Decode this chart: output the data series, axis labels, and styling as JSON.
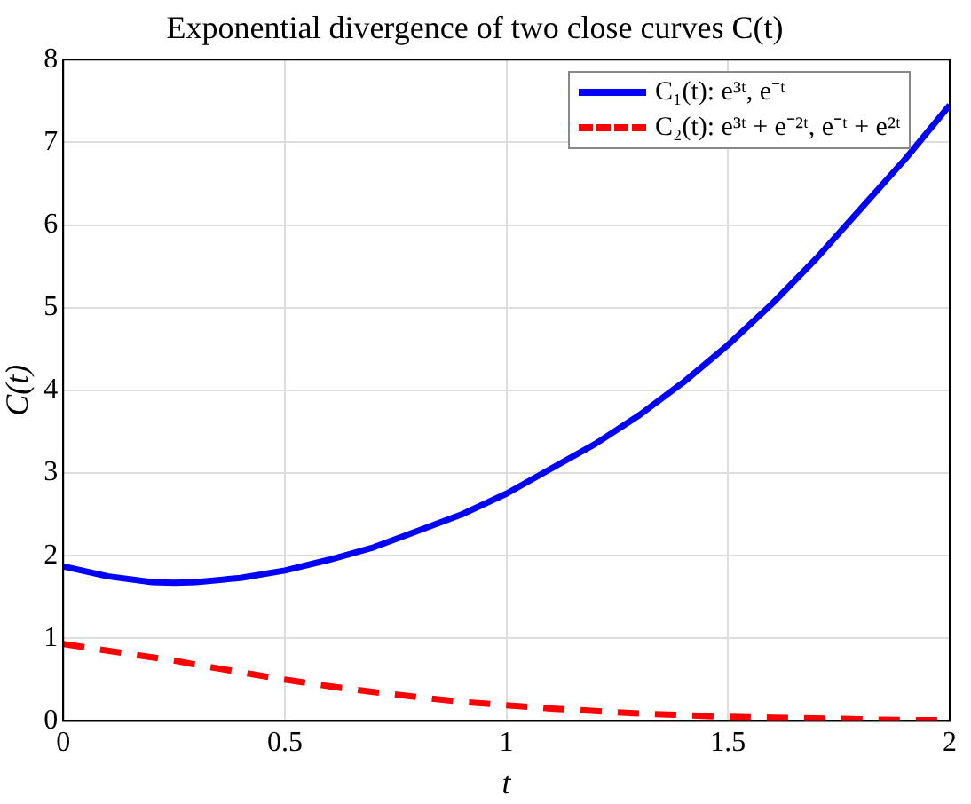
{
  "chart_data": {
    "type": "line",
    "title": "Exponential divergence of two close curves C(t)",
    "xlabel": "t",
    "ylabel": "C(t)",
    "x": [
      0,
      0.1,
      0.2,
      0.25,
      0.3,
      0.4,
      0.5,
      0.6,
      0.7,
      0.8,
      0.9,
      1.0,
      1.1,
      1.2,
      1.3,
      1.4,
      1.5,
      1.6,
      1.7,
      1.8,
      1.9,
      2.0
    ],
    "series": [
      {
        "name": "C₁(t): e³ᵗ, e⁻ᵗ",
        "color": "#0000ff",
        "line_style": "solid",
        "values": [
          1.87,
          1.75,
          1.68,
          1.67,
          1.68,
          1.73,
          1.82,
          1.95,
          2.1,
          2.3,
          2.5,
          2.75,
          3.05,
          3.35,
          3.7,
          4.1,
          4.55,
          5.05,
          5.6,
          6.2,
          6.8,
          7.45
        ]
      },
      {
        "name": "C₂(t): e³ᵗ + e⁻²ᵗ, e⁻ᵗ + e²ᵗ",
        "color": "#ff0000",
        "line_style": "dashed",
        "values": [
          0.93,
          0.85,
          0.77,
          0.73,
          0.68,
          0.59,
          0.5,
          0.42,
          0.35,
          0.29,
          0.23,
          0.19,
          0.15,
          0.12,
          0.09,
          0.07,
          0.05,
          0.04,
          0.03,
          0.02,
          0.01,
          0.01
        ]
      }
    ],
    "xlim": [
      0,
      2
    ],
    "xticks": [
      0,
      0.5,
      1,
      1.5,
      2
    ],
    "ylim": [
      0,
      8
    ],
    "yticks": [
      0,
      1,
      2,
      3,
      4,
      5,
      6,
      7,
      8
    ],
    "grid": true,
    "legend": "top right",
    "marker": "none"
  }
}
